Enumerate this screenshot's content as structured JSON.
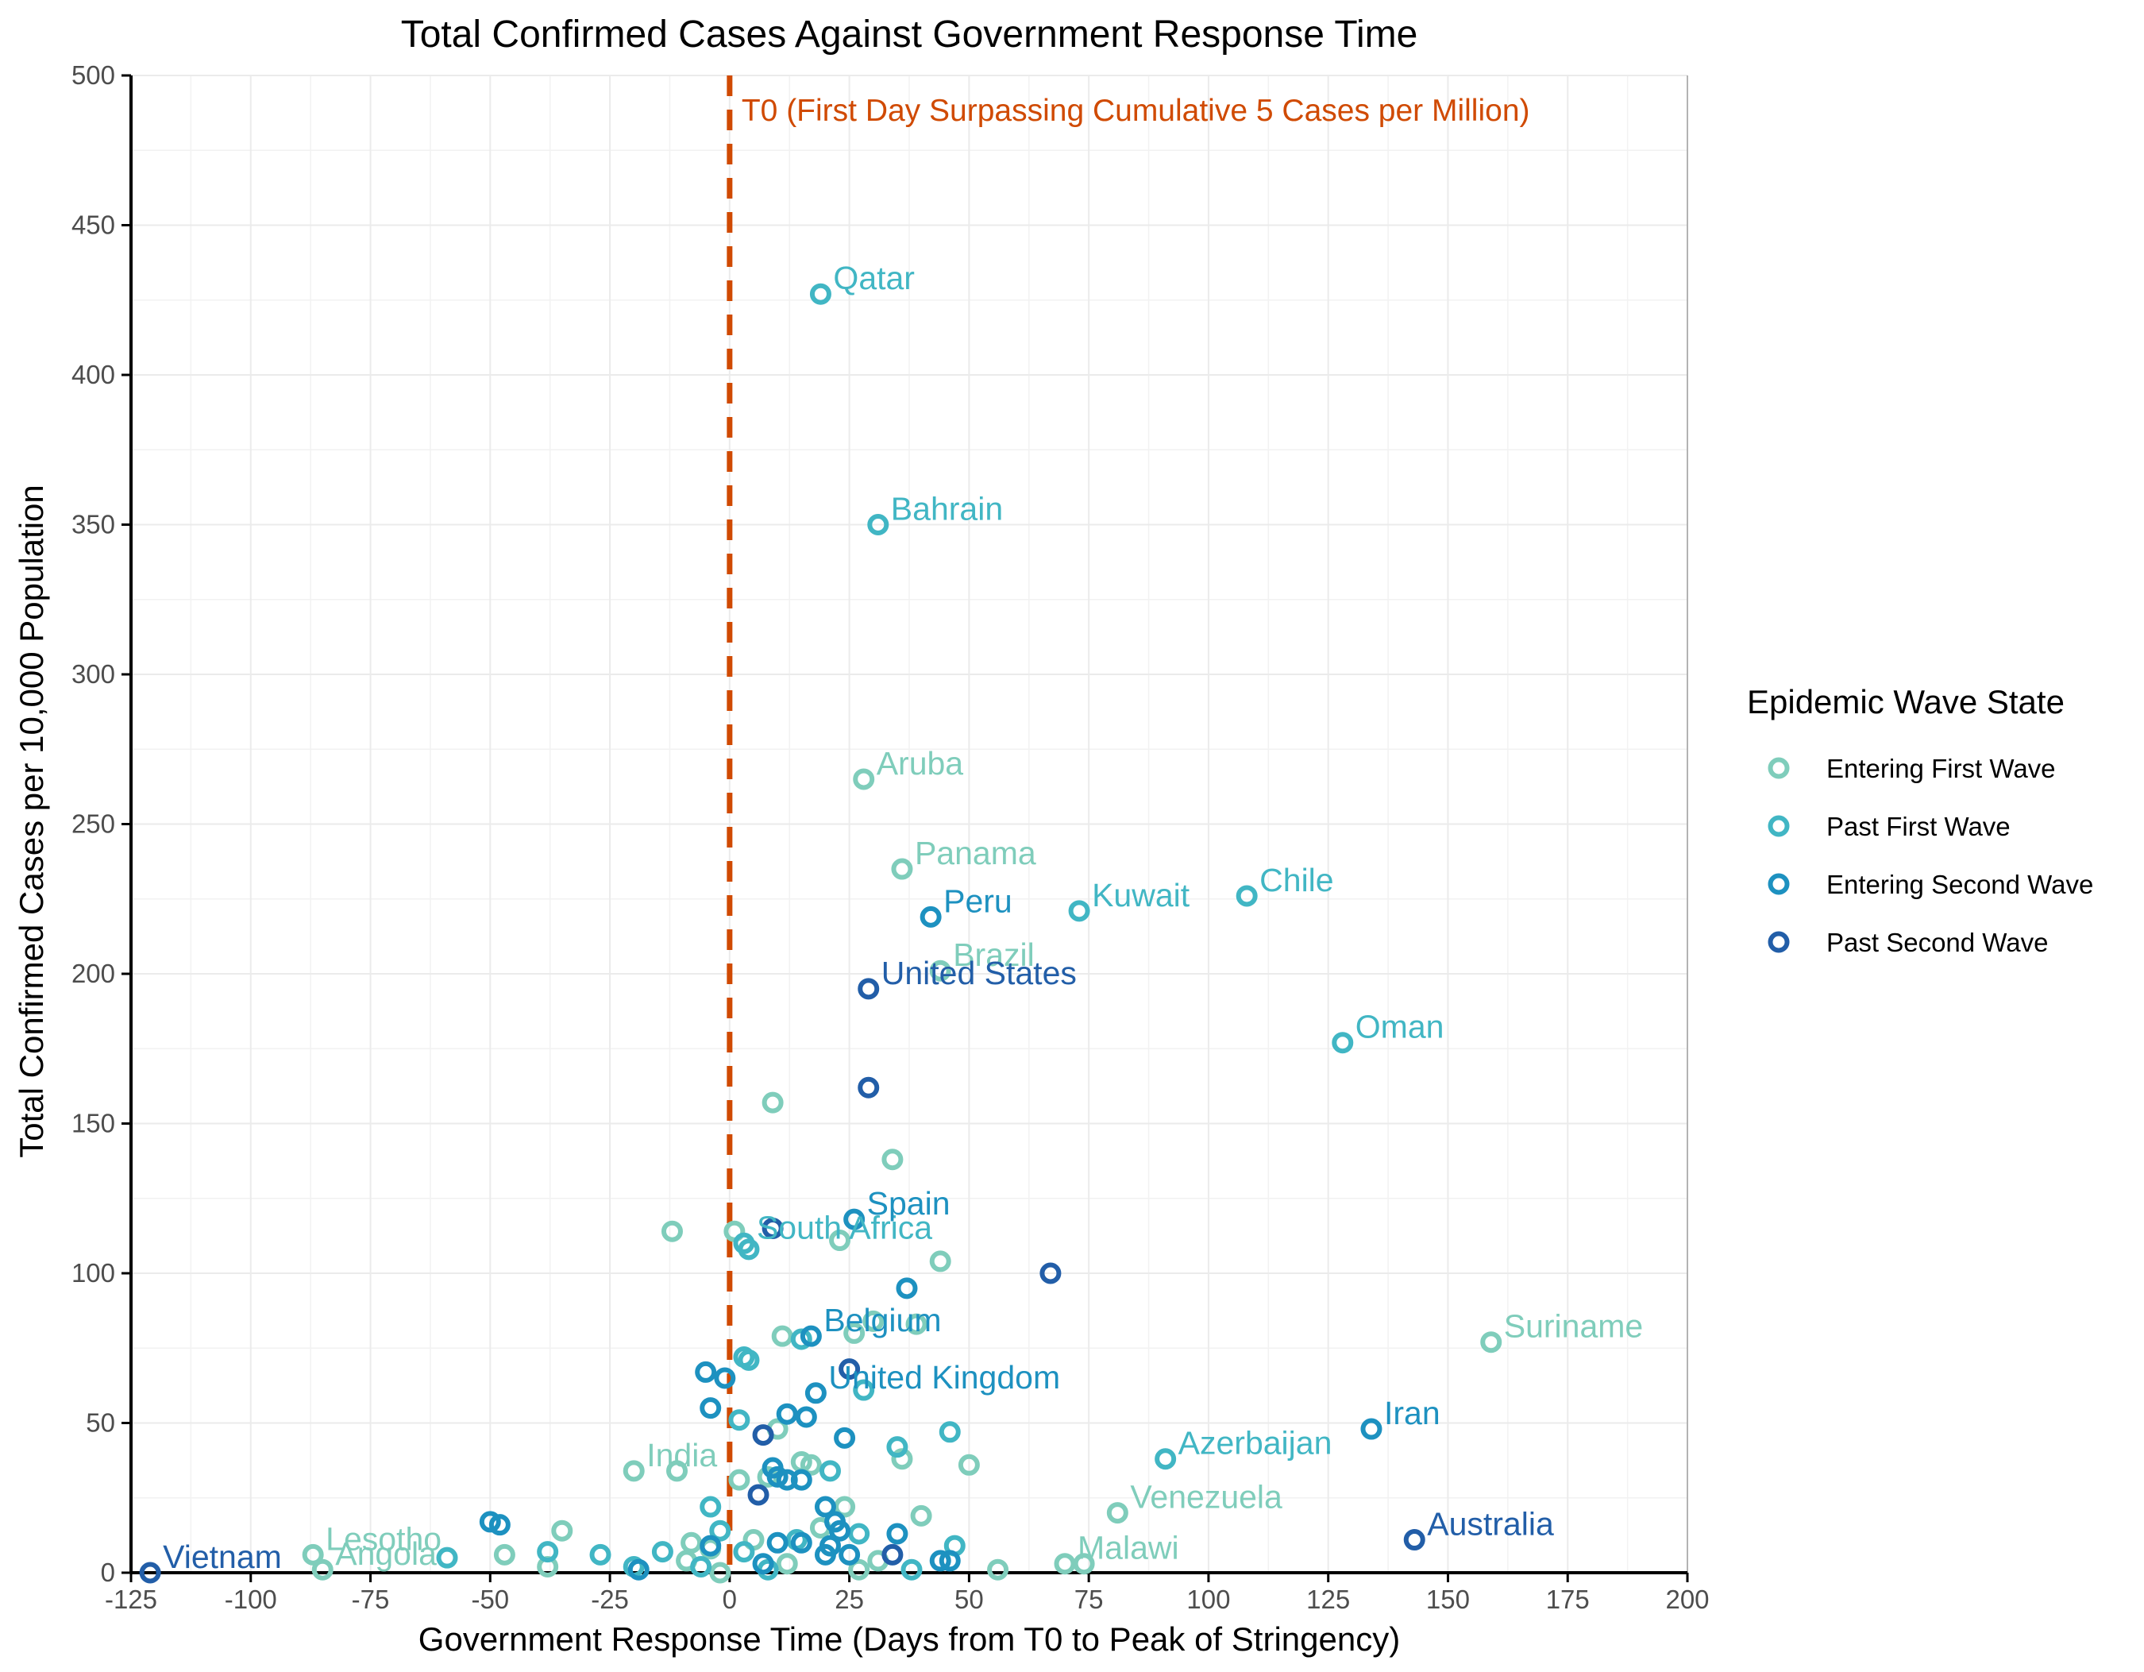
{
  "chart_data": {
    "type": "scatter",
    "title": "Total Confirmed Cases Against Government Response Time",
    "xlabel": "Government Response Time (Days from T0 to Peak of Stringency)",
    "ylabel": "Total Confirmed Cases per 10,000 Population",
    "xlim": [
      -125,
      200
    ],
    "ylim": [
      0,
      500
    ],
    "x_ticks": [
      "-125",
      "-100",
      "-75",
      "-50",
      "-25",
      "0",
      "25",
      "50",
      "75",
      "100",
      "125",
      "150",
      "175",
      "200"
    ],
    "y_ticks": [
      "0",
      "50",
      "100",
      "150",
      "200",
      "250",
      "300",
      "350",
      "400",
      "450",
      "500"
    ],
    "grid": true,
    "reference_line": {
      "x": 0,
      "label": "T0 (First Day Surpassing Cumulative 5 Cases per Million)",
      "color": "#d04a02"
    },
    "legend": {
      "title": "Epidemic Wave State",
      "position": "right"
    },
    "colors": {
      "Entering First Wave": "#7fcdbb",
      "Past First Wave": "#41b6c4",
      "Entering Second Wave": "#1d91c0",
      "Past Second Wave": "#225ea8",
      "annotation": "#d04a02",
      "grid": "#ebebeb"
    },
    "series": [
      {
        "name": "Entering First Wave",
        "points": [
          {
            "x": 28,
            "y": 265,
            "label": "Aruba"
          },
          {
            "x": 36,
            "y": 235,
            "label": "Panama"
          },
          {
            "x": 44,
            "y": 201,
            "label": "Brazil"
          },
          {
            "x": 159,
            "y": 77,
            "label": "Suriname"
          },
          {
            "x": 81,
            "y": 20,
            "label": "Venezuela"
          },
          {
            "x": 70,
            "y": 3,
            "label": "Malawi"
          },
          {
            "x": -20,
            "y": 34,
            "label": "India"
          },
          {
            "x": -87,
            "y": 6,
            "label": "Lesotho"
          },
          {
            "x": -85,
            "y": 1,
            "label": "Angola"
          },
          {
            "x": 9,
            "y": 157
          },
          {
            "x": 34,
            "y": 138
          },
          {
            "x": -12,
            "y": 114
          },
          {
            "x": 1,
            "y": 114
          },
          {
            "x": 23,
            "y": 111
          },
          {
            "x": 44,
            "y": 104
          },
          {
            "x": 11,
            "y": 79
          },
          {
            "x": 26,
            "y": 80
          },
          {
            "x": 30,
            "y": 84
          },
          {
            "x": 39,
            "y": 83
          },
          {
            "x": 50,
            "y": 36
          },
          {
            "x": 36,
            "y": 38
          },
          {
            "x": 15,
            "y": 37
          },
          {
            "x": 17,
            "y": 36
          },
          {
            "x": -11,
            "y": 34
          },
          {
            "x": 2,
            "y": 31
          },
          {
            "x": 8,
            "y": 32
          },
          {
            "x": 40,
            "y": 19
          },
          {
            "x": 24,
            "y": 22
          },
          {
            "x": -35,
            "y": 14
          },
          {
            "x": -8,
            "y": 10
          },
          {
            "x": -47,
            "y": 6
          },
          {
            "x": -38,
            "y": 2
          },
          {
            "x": -9,
            "y": 4
          },
          {
            "x": 12,
            "y": 3
          },
          {
            "x": 31,
            "y": 4
          },
          {
            "x": 56,
            "y": 1
          },
          {
            "x": 74,
            "y": 3
          },
          {
            "x": 27,
            "y": 1
          },
          {
            "x": -2,
            "y": 0
          },
          {
            "x": 5,
            "y": 11
          },
          {
            "x": 10,
            "y": 48
          },
          {
            "x": -4,
            "y": 8
          },
          {
            "x": 19,
            "y": 15
          }
        ]
      },
      {
        "name": "Past First Wave",
        "points": [
          {
            "x": 19,
            "y": 427,
            "label": "Qatar"
          },
          {
            "x": 31,
            "y": 350,
            "label": "Bahrain"
          },
          {
            "x": 73,
            "y": 221,
            "label": "Kuwait"
          },
          {
            "x": 108,
            "y": 226,
            "label": "Chile"
          },
          {
            "x": 128,
            "y": 177,
            "label": "Oman"
          },
          {
            "x": 91,
            "y": 38,
            "label": "Azerbaijan"
          },
          {
            "x": 3,
            "y": 110,
            "label": "South Africa"
          },
          {
            "x": 4,
            "y": 108
          },
          {
            "x": 3,
            "y": 72
          },
          {
            "x": 4,
            "y": 71
          },
          {
            "x": 15,
            "y": 78
          },
          {
            "x": 2,
            "y": 51
          },
          {
            "x": 28,
            "y": 61
          },
          {
            "x": 46,
            "y": 47
          },
          {
            "x": 35,
            "y": 42
          },
          {
            "x": 21,
            "y": 34
          },
          {
            "x": -4,
            "y": 22
          },
          {
            "x": -2,
            "y": 14
          },
          {
            "x": -14,
            "y": 7
          },
          {
            "x": -27,
            "y": 6
          },
          {
            "x": -38,
            "y": 7
          },
          {
            "x": -20,
            "y": 2
          },
          {
            "x": 3,
            "y": 7
          },
          {
            "x": 14,
            "y": 11
          },
          {
            "x": 27,
            "y": 13
          },
          {
            "x": 47,
            "y": 9
          },
          {
            "x": -6,
            "y": 2
          },
          {
            "x": 8,
            "y": 1
          },
          {
            "x": 38,
            "y": 1
          },
          {
            "x": -59,
            "y": 5
          }
        ]
      },
      {
        "name": "Entering Second Wave",
        "points": [
          {
            "x": 42,
            "y": 219,
            "label": "Peru"
          },
          {
            "x": 26,
            "y": 118,
            "label": "Spain"
          },
          {
            "x": 17,
            "y": 79,
            "label": "Belgium"
          },
          {
            "x": 18,
            "y": 60,
            "label": "United Kingdom"
          },
          {
            "x": 134,
            "y": 48,
            "label": "Iran"
          },
          {
            "x": 37,
            "y": 95
          },
          {
            "x": -5,
            "y": 67
          },
          {
            "x": -4,
            "y": 55
          },
          {
            "x": -1,
            "y": 65
          },
          {
            "x": 12,
            "y": 53
          },
          {
            "x": 16,
            "y": 52
          },
          {
            "x": 24,
            "y": 45
          },
          {
            "x": 9,
            "y": 35
          },
          {
            "x": 10,
            "y": 32
          },
          {
            "x": 12,
            "y": 31
          },
          {
            "x": 15,
            "y": 31
          },
          {
            "x": 20,
            "y": 22
          },
          {
            "x": 22,
            "y": 17
          },
          {
            "x": 23,
            "y": 14
          },
          {
            "x": -50,
            "y": 17
          },
          {
            "x": -48,
            "y": 16
          },
          {
            "x": 10,
            "y": 10
          },
          {
            "x": 15,
            "y": 10
          },
          {
            "x": 21,
            "y": 9
          },
          {
            "x": 25,
            "y": 6
          },
          {
            "x": 35,
            "y": 13
          },
          {
            "x": 44,
            "y": 4
          },
          {
            "x": 46,
            "y": 4
          },
          {
            "x": 20,
            "y": 6
          },
          {
            "x": -4,
            "y": 9
          },
          {
            "x": -19,
            "y": 1
          },
          {
            "x": 7,
            "y": 3
          }
        ]
      },
      {
        "name": "Past Second Wave",
        "points": [
          {
            "x": 29,
            "y": 195,
            "label": "United States"
          },
          {
            "x": 143,
            "y": 11,
            "label": "Australia"
          },
          {
            "x": -121,
            "y": 0,
            "label": "Vietnam"
          },
          {
            "x": 29,
            "y": 162
          },
          {
            "x": 67,
            "y": 100
          },
          {
            "x": 9,
            "y": 115
          },
          {
            "x": 25,
            "y": 68
          },
          {
            "x": 7,
            "y": 46
          },
          {
            "x": 6,
            "y": 26
          },
          {
            "x": 34,
            "y": 6
          }
        ]
      }
    ]
  }
}
